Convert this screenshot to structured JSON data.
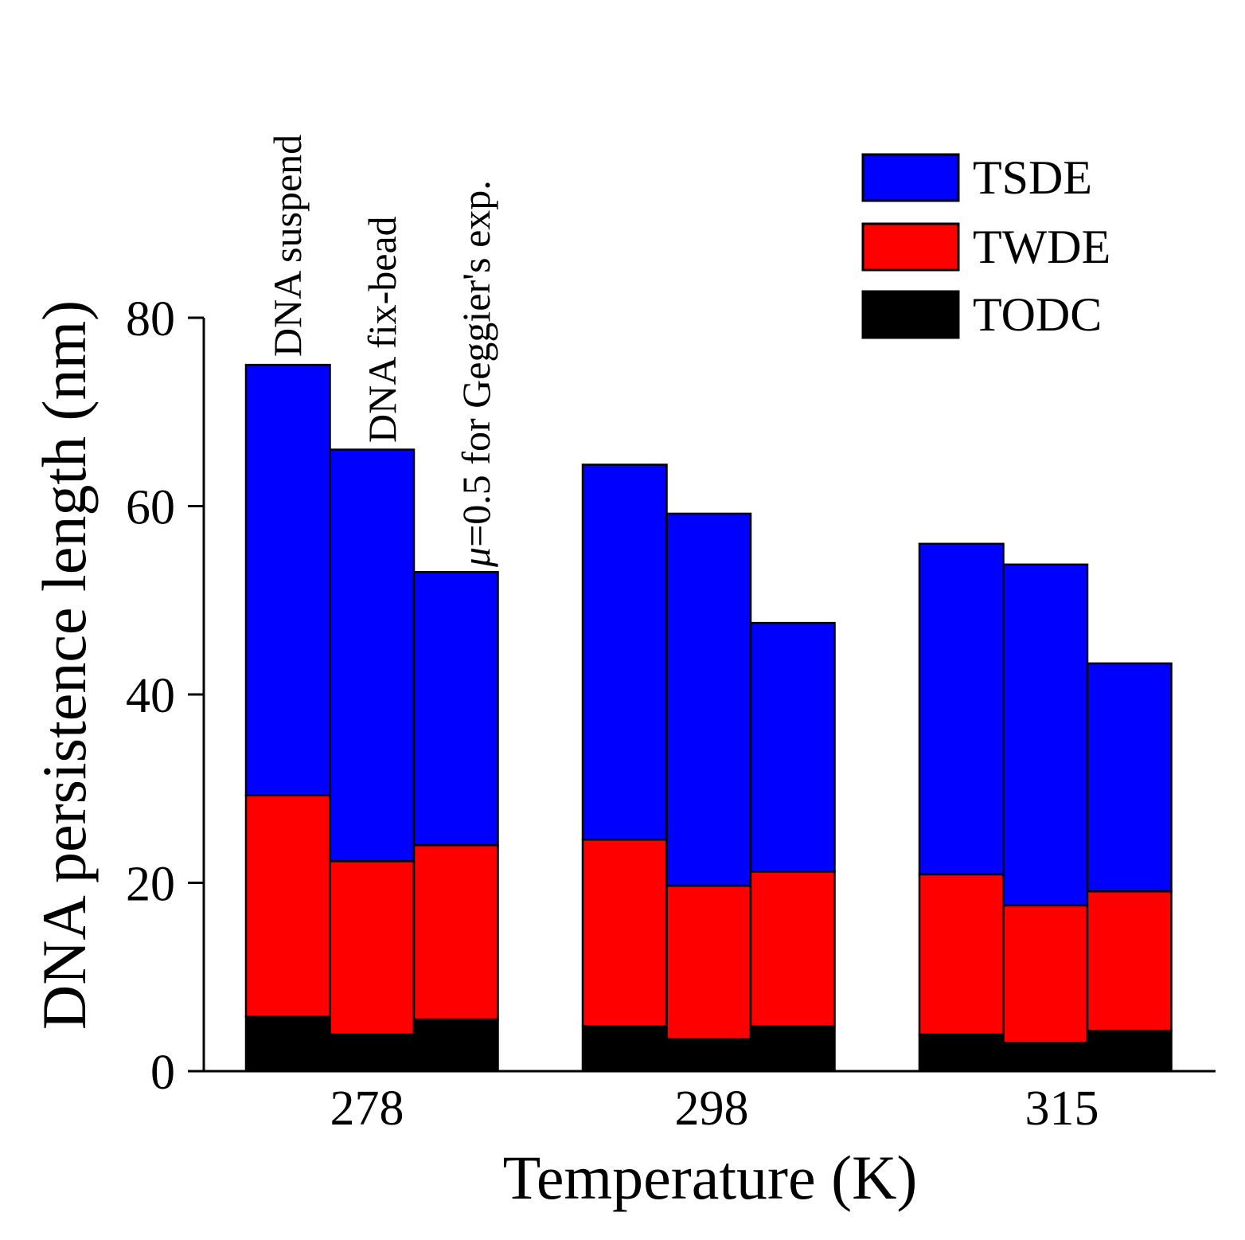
{
  "chart_data": {
    "type": "bar",
    "stacked": true,
    "title": "",
    "xlabel": "Temperature (K)",
    "ylabel": "DNA persistence length (nm)",
    "ylim": [
      0,
      80
    ],
    "yticks": [
      0,
      20,
      40,
      60,
      80
    ],
    "grid": false,
    "legend_position": "top-right",
    "categories": [
      "278",
      "298",
      "315"
    ],
    "group_labels": [
      "DNA suspend",
      "DNA fix-bead",
      "μ=0.5 for Geggier's exp."
    ],
    "series": [
      {
        "name": "TODC",
        "color": "#000000",
        "values": [
          [
            5.8,
            3.9,
            5.5
          ],
          [
            4.8,
            3.4,
            4.8
          ],
          [
            3.9,
            3.0,
            4.3
          ]
        ]
      },
      {
        "name": "TWDE",
        "color": "#ff0000",
        "values": [
          [
            23.5,
            18.4,
            18.5
          ],
          [
            19.8,
            16.3,
            16.4
          ],
          [
            17.0,
            14.6,
            14.8
          ]
        ]
      },
      {
        "name": "TSDE",
        "color": "#0000ff",
        "values": [
          [
            45.7,
            43.7,
            29.0
          ],
          [
            39.8,
            39.5,
            26.4
          ],
          [
            35.1,
            36.2,
            24.2
          ]
        ]
      }
    ],
    "legend": [
      "TSDE",
      "TWDE",
      "TODC"
    ]
  }
}
